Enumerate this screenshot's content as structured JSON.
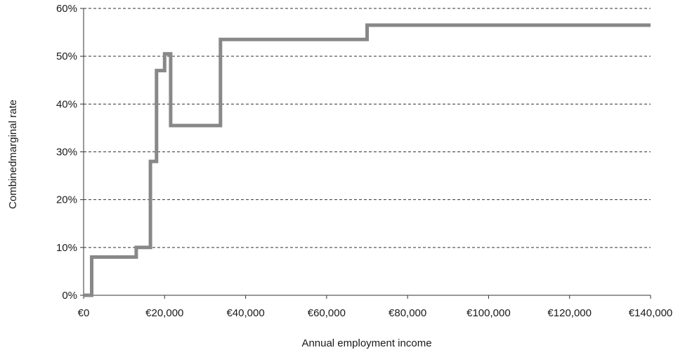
{
  "chart_data": {
    "type": "line",
    "title": "",
    "xlabel": "Annual employment income",
    "ylabel": "Combinedmarginal rate",
    "xlim": [
      0,
      140000
    ],
    "ylim": [
      0,
      0.6
    ],
    "x_ticks": [
      0,
      20000,
      40000,
      60000,
      80000,
      100000,
      120000,
      140000
    ],
    "x_tick_labels": [
      "€0",
      "€20,000",
      "€40,000",
      "€60,000",
      "€80,000",
      "€100,000",
      "€120,000",
      "€140,000"
    ],
    "y_ticks": [
      0,
      0.1,
      0.2,
      0.3,
      0.4,
      0.5,
      0.6
    ],
    "y_tick_labels": [
      "0%",
      "10%",
      "20%",
      "30%",
      "40%",
      "50%",
      "60%"
    ],
    "grid": "horizontal-dashed",
    "legend": "none",
    "series": [
      {
        "color": "#888888",
        "step": true,
        "x": [
          0,
          2000,
          2000,
          13000,
          13000,
          16500,
          16500,
          18000,
          18000,
          20000,
          20000,
          21500,
          21500,
          33800,
          33800,
          70000,
          70000,
          140000
        ],
        "y": [
          0,
          0,
          0.08,
          0.08,
          0.1,
          0.1,
          0.28,
          0.28,
          0.47,
          0.47,
          0.505,
          0.505,
          0.355,
          0.355,
          0.535,
          0.535,
          0.565,
          0.565
        ]
      }
    ]
  }
}
